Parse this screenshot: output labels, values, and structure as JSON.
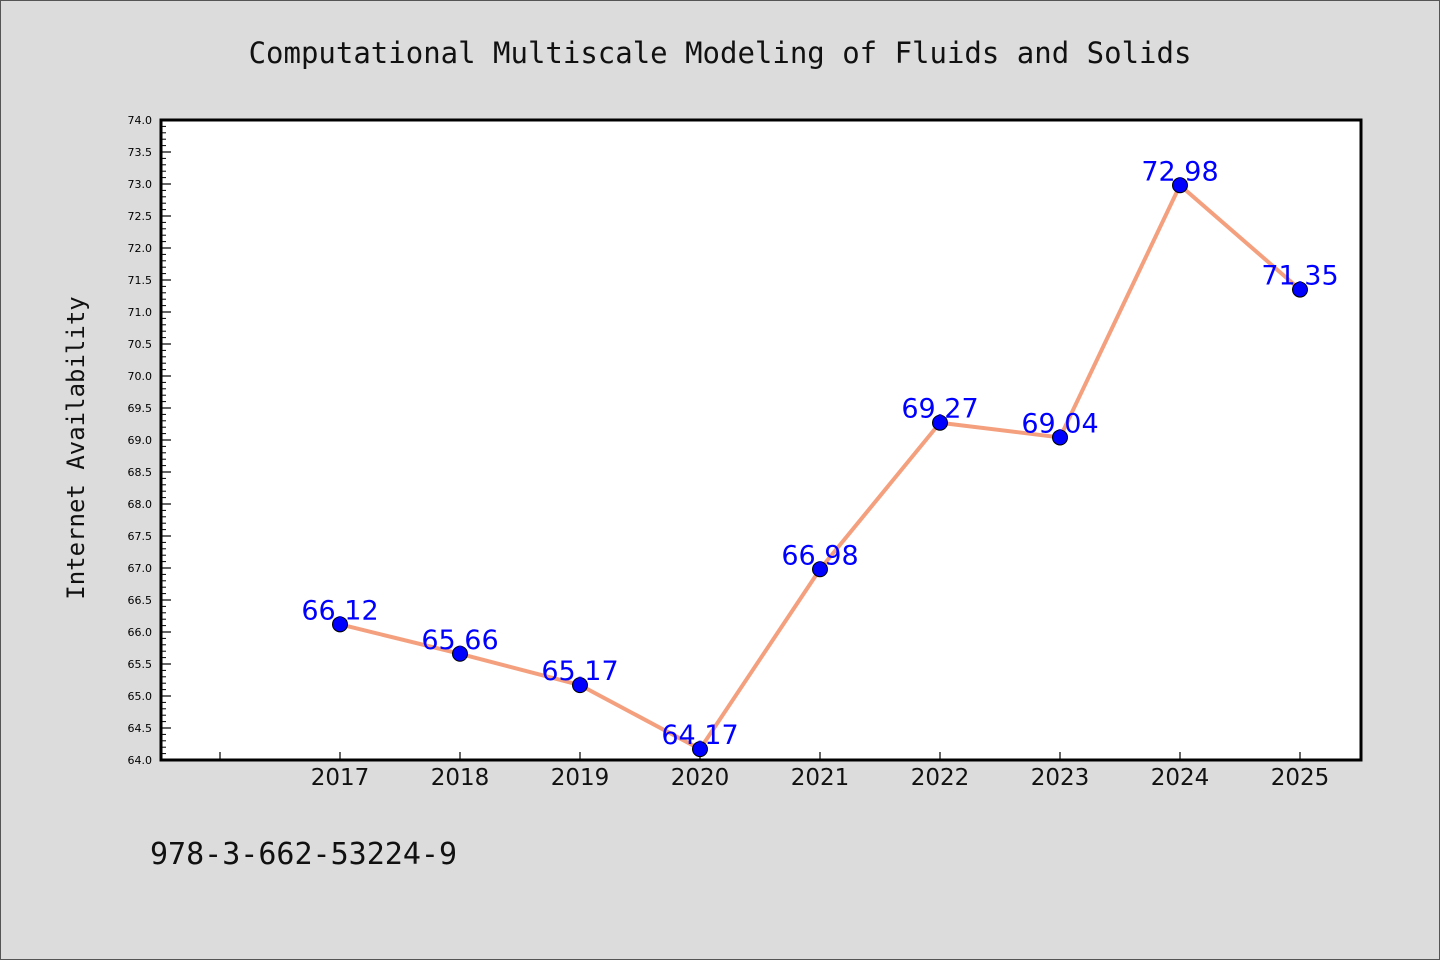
{
  "chart_data": {
    "type": "line",
    "title": "Computational Multiscale Modeling of Fluids and Solids",
    "xlabel": "",
    "ylabel": "Internet Availability",
    "categories": [
      "2017",
      "2018",
      "2019",
      "2020",
      "2021",
      "2022",
      "2023",
      "2024",
      "2025"
    ],
    "series": [
      {
        "values": [
          66.12,
          65.66,
          65.17,
          64.17,
          66.98,
          69.27,
          69.04,
          72.98,
          71.35
        ],
        "line_color": "#f4a07e",
        "marker_color": "#0000ff"
      }
    ],
    "data_labels": [
      "66.12",
      "65.66",
      "65.17",
      "64.17",
      "66.98",
      "69.27",
      "69.04",
      "72.98",
      "71.35"
    ],
    "label_color": "#0000ff",
    "ylim": [
      64.0,
      74.0
    ],
    "y_tick_step": 0.5,
    "grid": false,
    "legend": "none"
  },
  "footer_text": "978-3-662-53224-9",
  "colors": {
    "background": "#dcdcdc",
    "plot_background": "#ffffff",
    "axis": "#000000"
  }
}
